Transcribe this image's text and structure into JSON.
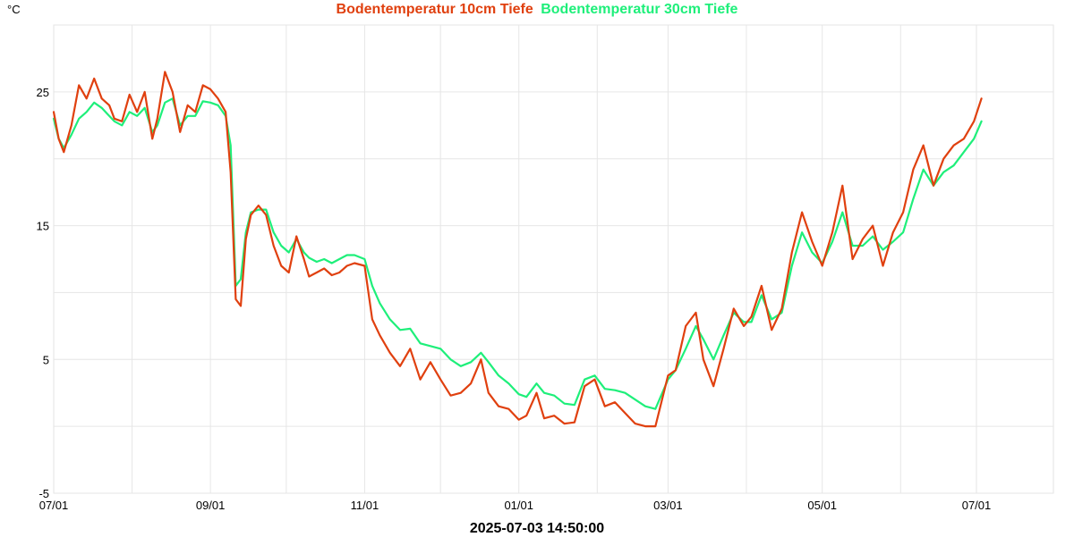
{
  "chart_data": {
    "type": "line",
    "unit_label": "°C",
    "timestamp": "2025-07-03 14:50:00",
    "x_labels": [
      "07/01",
      "09/01",
      "11/01",
      "01/01",
      "03/01",
      "05/01",
      "07/01"
    ],
    "ylim": [
      -5,
      30
    ],
    "yticks": [
      -5,
      5,
      15,
      25
    ],
    "grid": true,
    "legend_position": "top-center",
    "series": [
      {
        "name": "Bodentemperatur 10cm Tiefe",
        "color": "#e0400f",
        "x": [
          "2024-07-01",
          "2024-07-03",
          "2024-07-05",
          "2024-07-08",
          "2024-07-11",
          "2024-07-14",
          "2024-07-17",
          "2024-07-20",
          "2024-07-23",
          "2024-07-25",
          "2024-07-28",
          "2024-07-31",
          "2024-08-03",
          "2024-08-06",
          "2024-08-09",
          "2024-08-11",
          "2024-08-14",
          "2024-08-17",
          "2024-08-20",
          "2024-08-23",
          "2024-08-26",
          "2024-08-29",
          "2024-09-01",
          "2024-09-04",
          "2024-09-07",
          "2024-09-09",
          "2024-09-11",
          "2024-09-13",
          "2024-09-15",
          "2024-09-17",
          "2024-09-20",
          "2024-09-23",
          "2024-09-26",
          "2024-09-29",
          "2024-10-02",
          "2024-10-05",
          "2024-10-08",
          "2024-10-10",
          "2024-10-13",
          "2024-10-16",
          "2024-10-19",
          "2024-10-22",
          "2024-10-25",
          "2024-10-28",
          "2024-11-01",
          "2024-11-04",
          "2024-11-07",
          "2024-11-11",
          "2024-11-15",
          "2024-11-19",
          "2024-11-23",
          "2024-11-27",
          "2024-12-01",
          "2024-12-05",
          "2024-12-09",
          "2024-12-13",
          "2024-12-17",
          "2024-12-20",
          "2024-12-24",
          "2024-12-28",
          "2025-01-01",
          "2025-01-04",
          "2025-01-08",
          "2025-01-11",
          "2025-01-15",
          "2025-01-19",
          "2025-01-23",
          "2025-01-27",
          "2025-01-31",
          "2025-02-04",
          "2025-02-08",
          "2025-02-12",
          "2025-02-16",
          "2025-02-20",
          "2025-02-24",
          "2025-03-01",
          "2025-03-04",
          "2025-03-08",
          "2025-03-12",
          "2025-03-15",
          "2025-03-19",
          "2025-03-23",
          "2025-03-27",
          "2025-03-31",
          "2025-04-03",
          "2025-04-07",
          "2025-04-11",
          "2025-04-15",
          "2025-04-19",
          "2025-04-23",
          "2025-04-27",
          "2025-05-01",
          "2025-05-05",
          "2025-05-09",
          "2025-05-13",
          "2025-05-17",
          "2025-05-21",
          "2025-05-25",
          "2025-05-29",
          "2025-06-02",
          "2025-06-06",
          "2025-06-10",
          "2025-06-14",
          "2025-06-18",
          "2025-06-22",
          "2025-06-26",
          "2025-06-30",
          "2025-07-03"
        ],
        "values": [
          23.5,
          21.5,
          20.5,
          22.5,
          25.5,
          24.5,
          26,
          24.5,
          24,
          23,
          22.8,
          24.8,
          23.5,
          25,
          21.5,
          23,
          26.5,
          25,
          22,
          24,
          23.5,
          25.5,
          25.2,
          24.5,
          23.5,
          19,
          9.5,
          9,
          14,
          15.8,
          16.5,
          15.8,
          13.5,
          12,
          11.5,
          14.2,
          12.5,
          11.2,
          11.5,
          11.8,
          11.3,
          11.5,
          12,
          12.2,
          12,
          8,
          6.8,
          5.5,
          4.5,
          5.8,
          3.5,
          4.8,
          3.5,
          2.3,
          2.5,
          3.2,
          5,
          2.5,
          1.5,
          1.3,
          0.5,
          0.8,
          2.5,
          0.6,
          0.8,
          0.2,
          0.3,
          3,
          3.5,
          1.5,
          1.8,
          1,
          0.2,
          0,
          0,
          3.8,
          4.2,
          7.5,
          8.5,
          5,
          3,
          5.8,
          8.8,
          7.5,
          8.2,
          10.5,
          7.2,
          8.8,
          13,
          16,
          13.8,
          12,
          14.5,
          18,
          12.5,
          14,
          15,
          12,
          14.5,
          16,
          19.2,
          21,
          18,
          20,
          21,
          21.5,
          22.8,
          24.5
        ]
      },
      {
        "name": "Bodentemperatur 30cm Tiefe",
        "color": "#1eef7a",
        "x": [
          "2024-07-01",
          "2024-07-03",
          "2024-07-05",
          "2024-07-08",
          "2024-07-11",
          "2024-07-14",
          "2024-07-17",
          "2024-07-20",
          "2024-07-23",
          "2024-07-25",
          "2024-07-28",
          "2024-07-31",
          "2024-08-03",
          "2024-08-06",
          "2024-08-09",
          "2024-08-11",
          "2024-08-14",
          "2024-08-17",
          "2024-08-20",
          "2024-08-23",
          "2024-08-26",
          "2024-08-29",
          "2024-09-01",
          "2024-09-04",
          "2024-09-07",
          "2024-09-09",
          "2024-09-11",
          "2024-09-13",
          "2024-09-15",
          "2024-09-17",
          "2024-09-20",
          "2024-09-23",
          "2024-09-26",
          "2024-09-29",
          "2024-10-02",
          "2024-10-05",
          "2024-10-08",
          "2024-10-10",
          "2024-10-13",
          "2024-10-16",
          "2024-10-19",
          "2024-10-22",
          "2024-10-25",
          "2024-10-28",
          "2024-11-01",
          "2024-11-04",
          "2024-11-07",
          "2024-11-11",
          "2024-11-15",
          "2024-11-19",
          "2024-11-23",
          "2024-11-27",
          "2024-12-01",
          "2024-12-05",
          "2024-12-09",
          "2024-12-13",
          "2024-12-17",
          "2024-12-20",
          "2024-12-24",
          "2024-12-28",
          "2025-01-01",
          "2025-01-04",
          "2025-01-08",
          "2025-01-11",
          "2025-01-15",
          "2025-01-19",
          "2025-01-23",
          "2025-01-27",
          "2025-01-31",
          "2025-02-04",
          "2025-02-08",
          "2025-02-12",
          "2025-02-16",
          "2025-02-20",
          "2025-02-24",
          "2025-03-01",
          "2025-03-04",
          "2025-03-08",
          "2025-03-12",
          "2025-03-15",
          "2025-03-19",
          "2025-03-23",
          "2025-03-27",
          "2025-03-31",
          "2025-04-03",
          "2025-04-07",
          "2025-04-11",
          "2025-04-15",
          "2025-04-19",
          "2025-04-23",
          "2025-04-27",
          "2025-05-01",
          "2025-05-05",
          "2025-05-09",
          "2025-05-13",
          "2025-05-17",
          "2025-05-21",
          "2025-05-25",
          "2025-05-29",
          "2025-06-02",
          "2025-06-06",
          "2025-06-10",
          "2025-06-14",
          "2025-06-18",
          "2025-06-22",
          "2025-06-26",
          "2025-06-30",
          "2025-07-03"
        ],
        "values": [
          23,
          21.5,
          20.8,
          21.8,
          23,
          23.5,
          24.2,
          23.8,
          23.2,
          22.8,
          22.5,
          23.5,
          23.2,
          23.8,
          22,
          22.5,
          24.2,
          24.5,
          22.5,
          23.2,
          23.2,
          24.3,
          24.2,
          24,
          23.2,
          21,
          10.5,
          11,
          14.5,
          16,
          16.2,
          16.2,
          14.5,
          13.5,
          13,
          14,
          13,
          12.6,
          12.3,
          12.5,
          12.2,
          12.5,
          12.8,
          12.8,
          12.5,
          10.5,
          9.2,
          8,
          7.2,
          7.3,
          6.2,
          6,
          5.8,
          5,
          4.5,
          4.8,
          5.5,
          4.8,
          3.8,
          3.2,
          2.4,
          2.2,
          3.2,
          2.5,
          2.3,
          1.7,
          1.6,
          3.5,
          3.8,
          2.8,
          2.7,
          2.5,
          2,
          1.5,
          1.3,
          3.5,
          4.2,
          5.8,
          7.5,
          6.5,
          5,
          6.8,
          8.5,
          7.8,
          7.8,
          9.8,
          8,
          8.5,
          12,
          14.5,
          13,
          12.2,
          13.8,
          16,
          13.5,
          13.5,
          14.2,
          13.2,
          13.8,
          14.5,
          17,
          19.2,
          18,
          19,
          19.5,
          20.5,
          21.5,
          22.8
        ]
      }
    ]
  }
}
